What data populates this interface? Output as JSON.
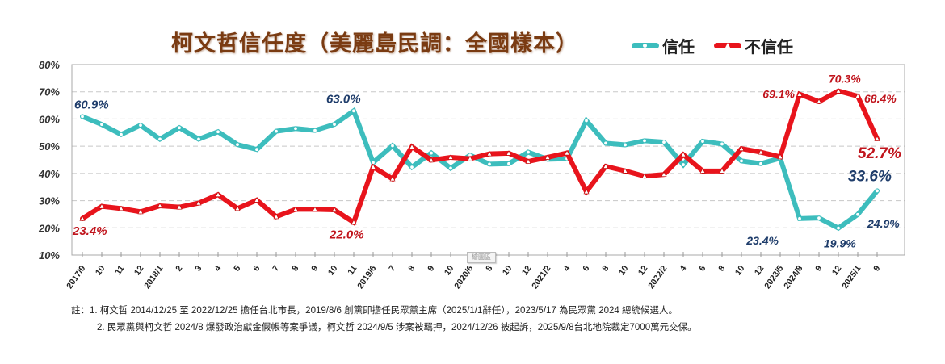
{
  "chart_data": {
    "type": "line",
    "title": "柯文哲信任度（美麗島民調：全國樣本）",
    "xlabel": "",
    "ylabel": "",
    "ylim": [
      10,
      80
    ],
    "yticks": [
      "80%",
      "70%",
      "60%",
      "50%",
      "40%",
      "30%",
      "20%",
      "10%"
    ],
    "grid": true,
    "legend_position": "top-right",
    "categories": [
      "2017/9",
      "10",
      "11",
      "12",
      "2018/1",
      "2",
      "3",
      "4",
      "5",
      "6",
      "7",
      "8",
      "9",
      "10",
      "11",
      "2019/6",
      "7",
      "8",
      "9",
      "10",
      "2020/6",
      "8",
      "10",
      "12",
      "2021/2",
      "4",
      "6",
      "8",
      "10",
      "12",
      "2022/2",
      "4",
      "6",
      "8",
      "10",
      "12",
      "2023/5",
      "2024/8",
      "9",
      "12",
      "2025/1",
      "9"
    ],
    "series": [
      {
        "name": "信任",
        "color": "#3dbdbd",
        "marker": "circle",
        "values": [
          60.9,
          58.0,
          54.3,
          57.7,
          52.6,
          56.8,
          52.6,
          55.3,
          50.6,
          48.8,
          55.5,
          56.5,
          55.8,
          58.0,
          63.0,
          44.0,
          50.2,
          42.3,
          47.5,
          41.9,
          46.7,
          43.4,
          43.6,
          47.8,
          45.2,
          45.4,
          59.4,
          51.1,
          50.5,
          52.0,
          51.5,
          43.2,
          51.8,
          50.8,
          44.6,
          43.6,
          45.6,
          23.4,
          23.6,
          19.9,
          24.9,
          33.6
        ]
      },
      {
        "name": "不信任",
        "color": "#e8141c",
        "marker": "triangle",
        "values": [
          23.4,
          27.9,
          27.1,
          25.9,
          28.1,
          27.6,
          29.1,
          32.2,
          27.1,
          30.2,
          24.1,
          26.8,
          26.8,
          26.6,
          22.0,
          42.4,
          38.0,
          49.8,
          44.9,
          45.9,
          45.4,
          47.2,
          47.4,
          44.4,
          45.9,
          47.5,
          33.3,
          42.6,
          40.9,
          39.0,
          39.6,
          46.9,
          40.9,
          40.9,
          49.1,
          47.8,
          46.1,
          69.1,
          66.4,
          70.3,
          68.4,
          52.7
        ]
      }
    ],
    "annotations": [
      {
        "series": "信任",
        "index": 0,
        "text": "60.9%"
      },
      {
        "series": "信任",
        "index": 14,
        "text": "63.0%"
      },
      {
        "series": "信任",
        "index": 37,
        "text": "23.4%"
      },
      {
        "series": "信任",
        "index": 39,
        "text": "19.9%"
      },
      {
        "series": "信任",
        "index": 40,
        "text": "24.9%"
      },
      {
        "series": "信任",
        "index": 41,
        "text": "33.6%"
      },
      {
        "series": "不信任",
        "index": 0,
        "text": "23.4%"
      },
      {
        "series": "不信任",
        "index": 14,
        "text": "22.0%"
      },
      {
        "series": "不信任",
        "index": 37,
        "text": "69.1%"
      },
      {
        "series": "不信任",
        "index": 39,
        "text": "70.3%"
      },
      {
        "series": "不信任",
        "index": 40,
        "text": "68.4%"
      },
      {
        "series": "不信任",
        "index": 41,
        "text": "52.7%"
      }
    ]
  },
  "header": {
    "title": "柯文哲信任度（美麗島民調：全國樣本）",
    "legend": [
      {
        "label": "信任",
        "color": "#3dbdbd"
      },
      {
        "label": "不信任",
        "color": "#e8141c"
      }
    ]
  },
  "plot_tooltip": "繪圖區",
  "notes": {
    "line1": "註：1. 柯文哲 2014/12/25 至 2022/12/25 擔任台北市長，2019/8/6 創黨即擔任民眾黨主席（2025/1/1辭任），2023/5/17 為民眾黨 2024 總統候選人。",
    "line2": "2. 民眾黨與柯文哲 2024/8 爆發政治獻金假帳等案爭議，柯文哲 2024/9/5 涉案被羈押，2024/12/26 被起訴，2025/9/8台北地院裁定7000萬元交保。"
  },
  "colors": {
    "title": "#7a3b12",
    "trust_label": "#1f3d6b",
    "distrust_label": "#c0141c",
    "grid": "#c8c8c8",
    "frame": "#a8a8a8"
  }
}
